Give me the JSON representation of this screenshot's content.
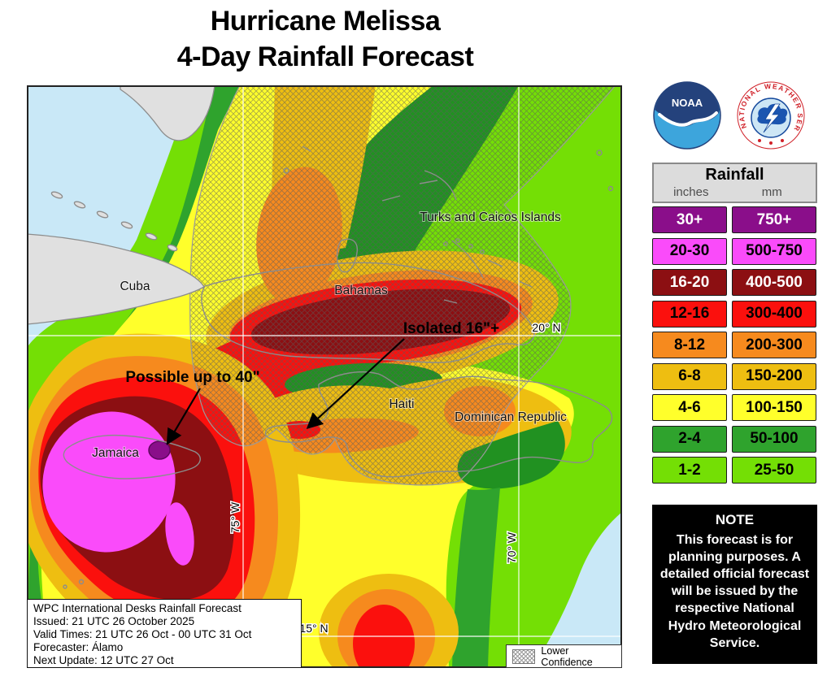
{
  "title": {
    "line1": "Hurricane Melissa",
    "line2": "4-Day Rainfall Forecast"
  },
  "map": {
    "places": {
      "cuba": "Cuba",
      "bahamas": "Bahamas",
      "turks_caicos": "Turks and Caicos Islands",
      "haiti": "Haiti",
      "dominican_republic": "Dominican Republic",
      "jamaica": "Jamaica"
    },
    "grid": {
      "lon75": "75° W",
      "lon70": "70° W",
      "lat20": "20° N",
      "lat15": "15° N"
    },
    "annotations": {
      "jamaica_max": "Possible up to 40\"",
      "haiti_max": "Isolated 16\"+"
    },
    "info_box": {
      "lines": [
        "WPC International Desks Rainfall Forecast",
        "Issued: 21 UTC 26 October 2025",
        "Valid Times: 21 UTC 26 Oct - 00 UTC 31 Oct",
        "Forecaster: Álamo",
        "Next Update: 12 UTC 27 Oct"
      ]
    },
    "lower_confidence_label": "Lower Confidence"
  },
  "legend": {
    "title": "Rainfall",
    "unit_left": "inches",
    "unit_right": "mm",
    "rows": [
      {
        "inches": "30+",
        "mm": "750+",
        "color": "#8A0E8A",
        "text_color": "#FFFFFF"
      },
      {
        "inches": "20-30",
        "mm": "500-750",
        "color": "#FA4BFA",
        "text_color": "#000000"
      },
      {
        "inches": "16-20",
        "mm": "400-500",
        "color": "#8C0F12",
        "text_color": "#FFFFFF"
      },
      {
        "inches": "12-16",
        "mm": "300-400",
        "color": "#FB100D",
        "text_color": "#000000"
      },
      {
        "inches": "8-12",
        "mm": "200-300",
        "color": "#F68A1E",
        "text_color": "#000000"
      },
      {
        "inches": "6-8",
        "mm": "150-200",
        "color": "#EEBE11",
        "text_color": "#000000"
      },
      {
        "inches": "4-6",
        "mm": "100-150",
        "color": "#FFFF2B",
        "text_color": "#000000"
      },
      {
        "inches": "2-4",
        "mm": "50-100",
        "color": "#2FA32D",
        "text_color": "#000000"
      },
      {
        "inches": "1-2",
        "mm": "25-50",
        "color": "#74DF05",
        "text_color": "#000000"
      }
    ]
  },
  "note": {
    "title": "NOTE",
    "body": "This forecast is for planning purposes. A detailed official forecast will be issued by the respective National Hydro Meteorological Service."
  },
  "logos": {
    "noaa_text": "NOAA",
    "nws_text": "NATIONAL WEATHER SERVICE"
  }
}
